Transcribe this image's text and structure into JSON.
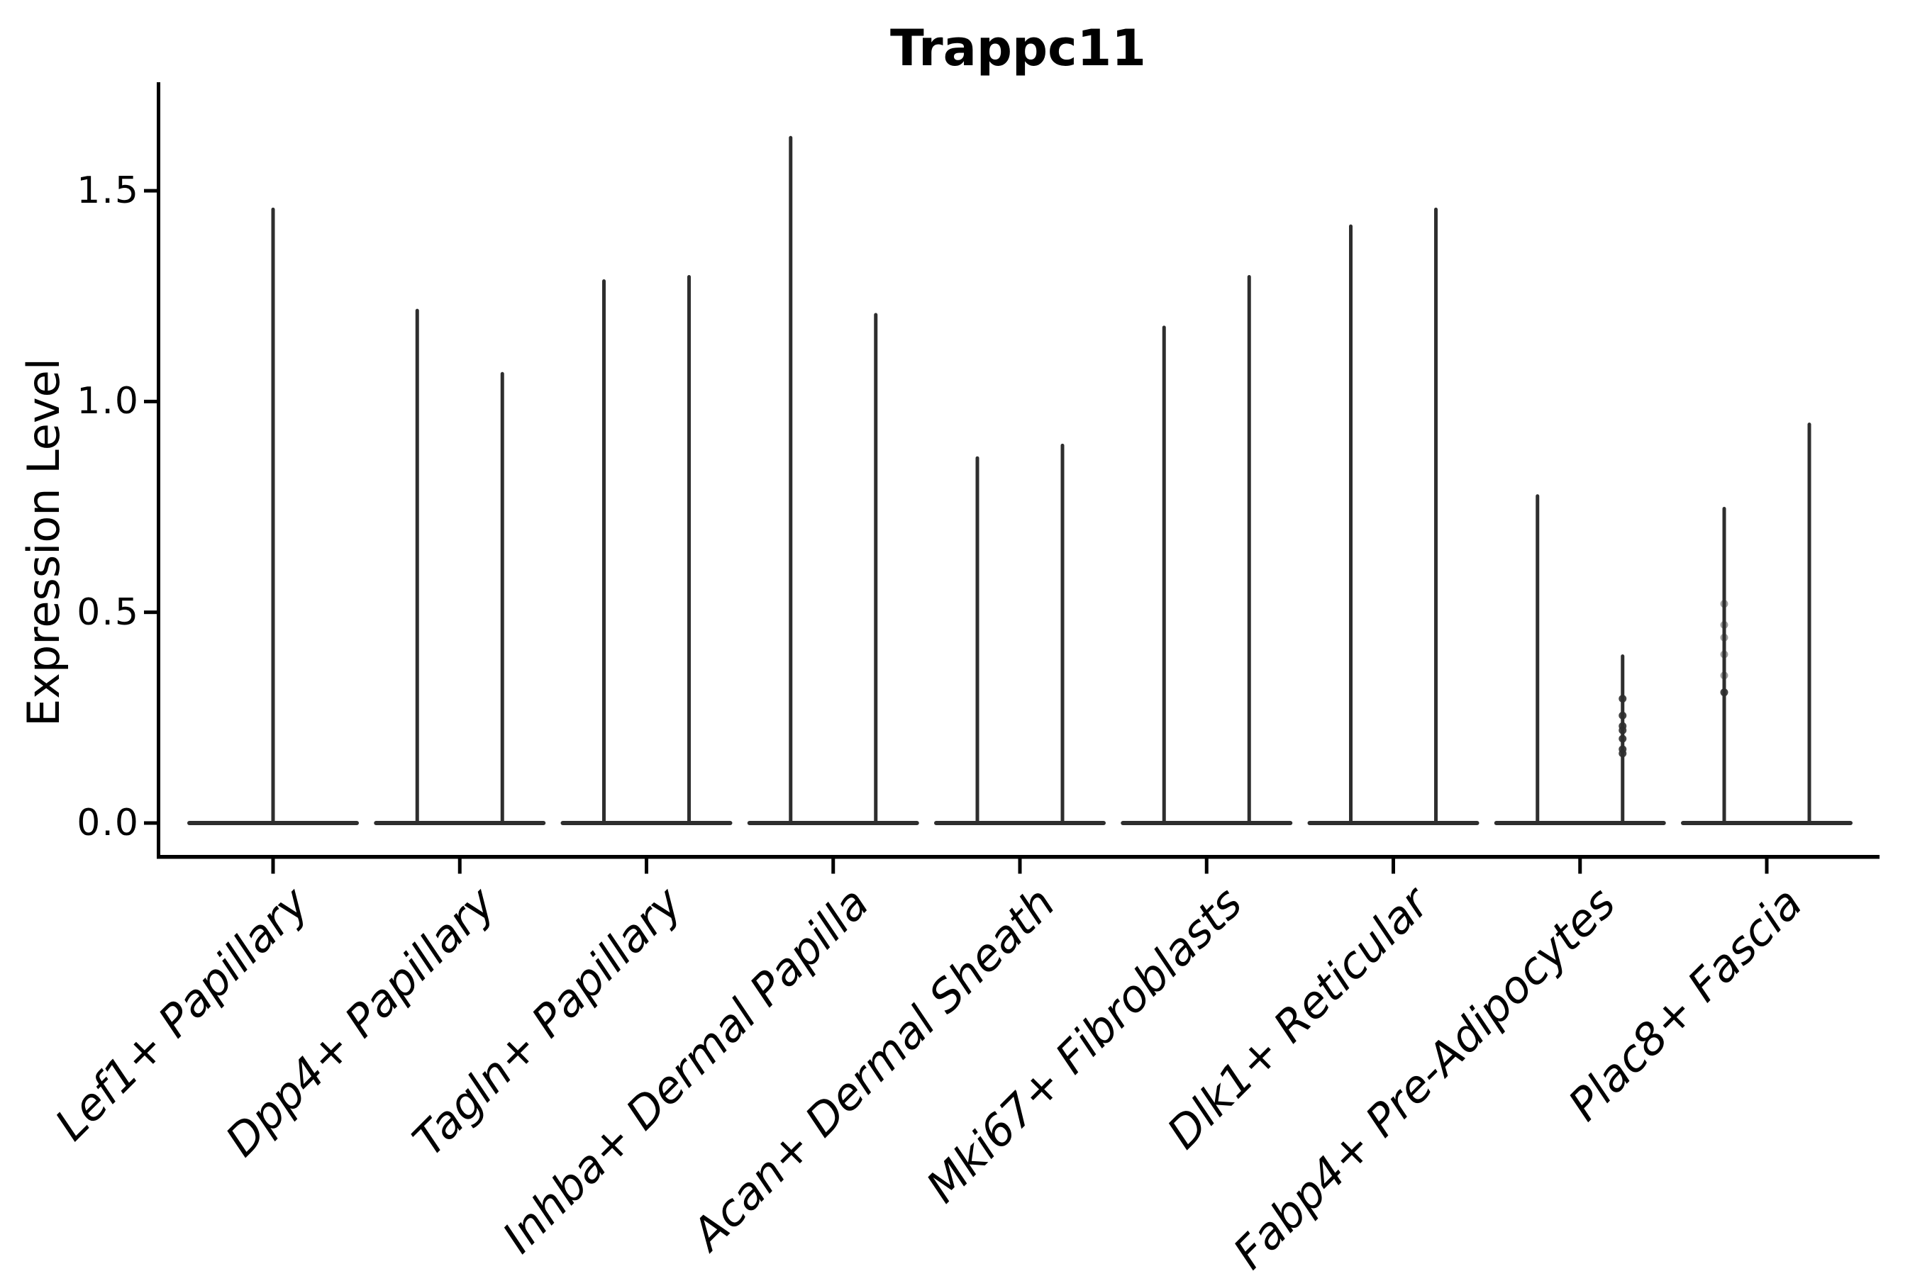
{
  "title": "Trappc11",
  "chart_data": {
    "type": "violin",
    "title": "Trappc11",
    "xlabel": "",
    "ylabel": "Expression Level",
    "ytick_labels": [
      "0.0",
      "0.5",
      "1.0",
      "1.5"
    ],
    "ytick_values": [
      0.0,
      0.5,
      1.0,
      1.5
    ],
    "ylim": [
      -0.08,
      1.76
    ],
    "grid": false,
    "legend": "none",
    "style_note": "monochrome violin plot; each violin collapses to a wide flat base at 0 with a thin vertical density spike; most categories contain two side-by-side violins, first category has one full-width violin",
    "categories": [
      "Lef1+ Papillary",
      "Dpp4+ Papillary",
      "Tagln+ Papillary",
      "Inhba+ Dermal Papilla",
      "Acan+ Dermal Sheath",
      "Mki67+ Fibroblasts",
      "Dlk1+ Reticular",
      "Fabp4+ Pre-Adipocytes",
      "Plac8+ Fascia"
    ],
    "violins": [
      {
        "category": "Lef1+ Papillary",
        "maxima": [
          1.46
        ],
        "points": [
          []
        ]
      },
      {
        "category": "Dpp4+ Papillary",
        "maxima": [
          1.22,
          1.07
        ],
        "points": [
          [],
          []
        ]
      },
      {
        "category": "Tagln+ Papillary",
        "maxima": [
          1.29,
          1.3
        ],
        "points": [
          [],
          []
        ]
      },
      {
        "category": "Inhba+ Dermal Papilla",
        "maxima": [
          1.63,
          1.21
        ],
        "points": [
          [],
          []
        ]
      },
      {
        "category": "Acan+ Dermal Sheath",
        "maxima": [
          0.87,
          0.9
        ],
        "points": [
          [],
          []
        ]
      },
      {
        "category": "Mki67+ Fibroblasts",
        "maxima": [
          1.18,
          1.3
        ],
        "points": [
          [],
          []
        ]
      },
      {
        "category": "Dlk1+ Reticular",
        "maxima": [
          1.42,
          1.46
        ],
        "points": [
          [],
          []
        ]
      },
      {
        "category": "Fabp4+ Pre-Adipocytes",
        "maxima": [
          0.78,
          0.4
        ],
        "points": [
          [],
          [
            0.295,
            0.255,
            0.23,
            0.22,
            0.2,
            0.175,
            0.165
          ]
        ]
      },
      {
        "category": "Plac8+ Fascia",
        "maxima": [
          0.75,
          0.95
        ],
        "points": [
          [
            0.52,
            0.47,
            0.44,
            0.4,
            0.35,
            0.31
          ],
          []
        ]
      }
    ],
    "colors": {
      "violin_stroke": "#2e2e2e",
      "axis": "#000000",
      "text": "#000000",
      "background": "#ffffff"
    }
  }
}
